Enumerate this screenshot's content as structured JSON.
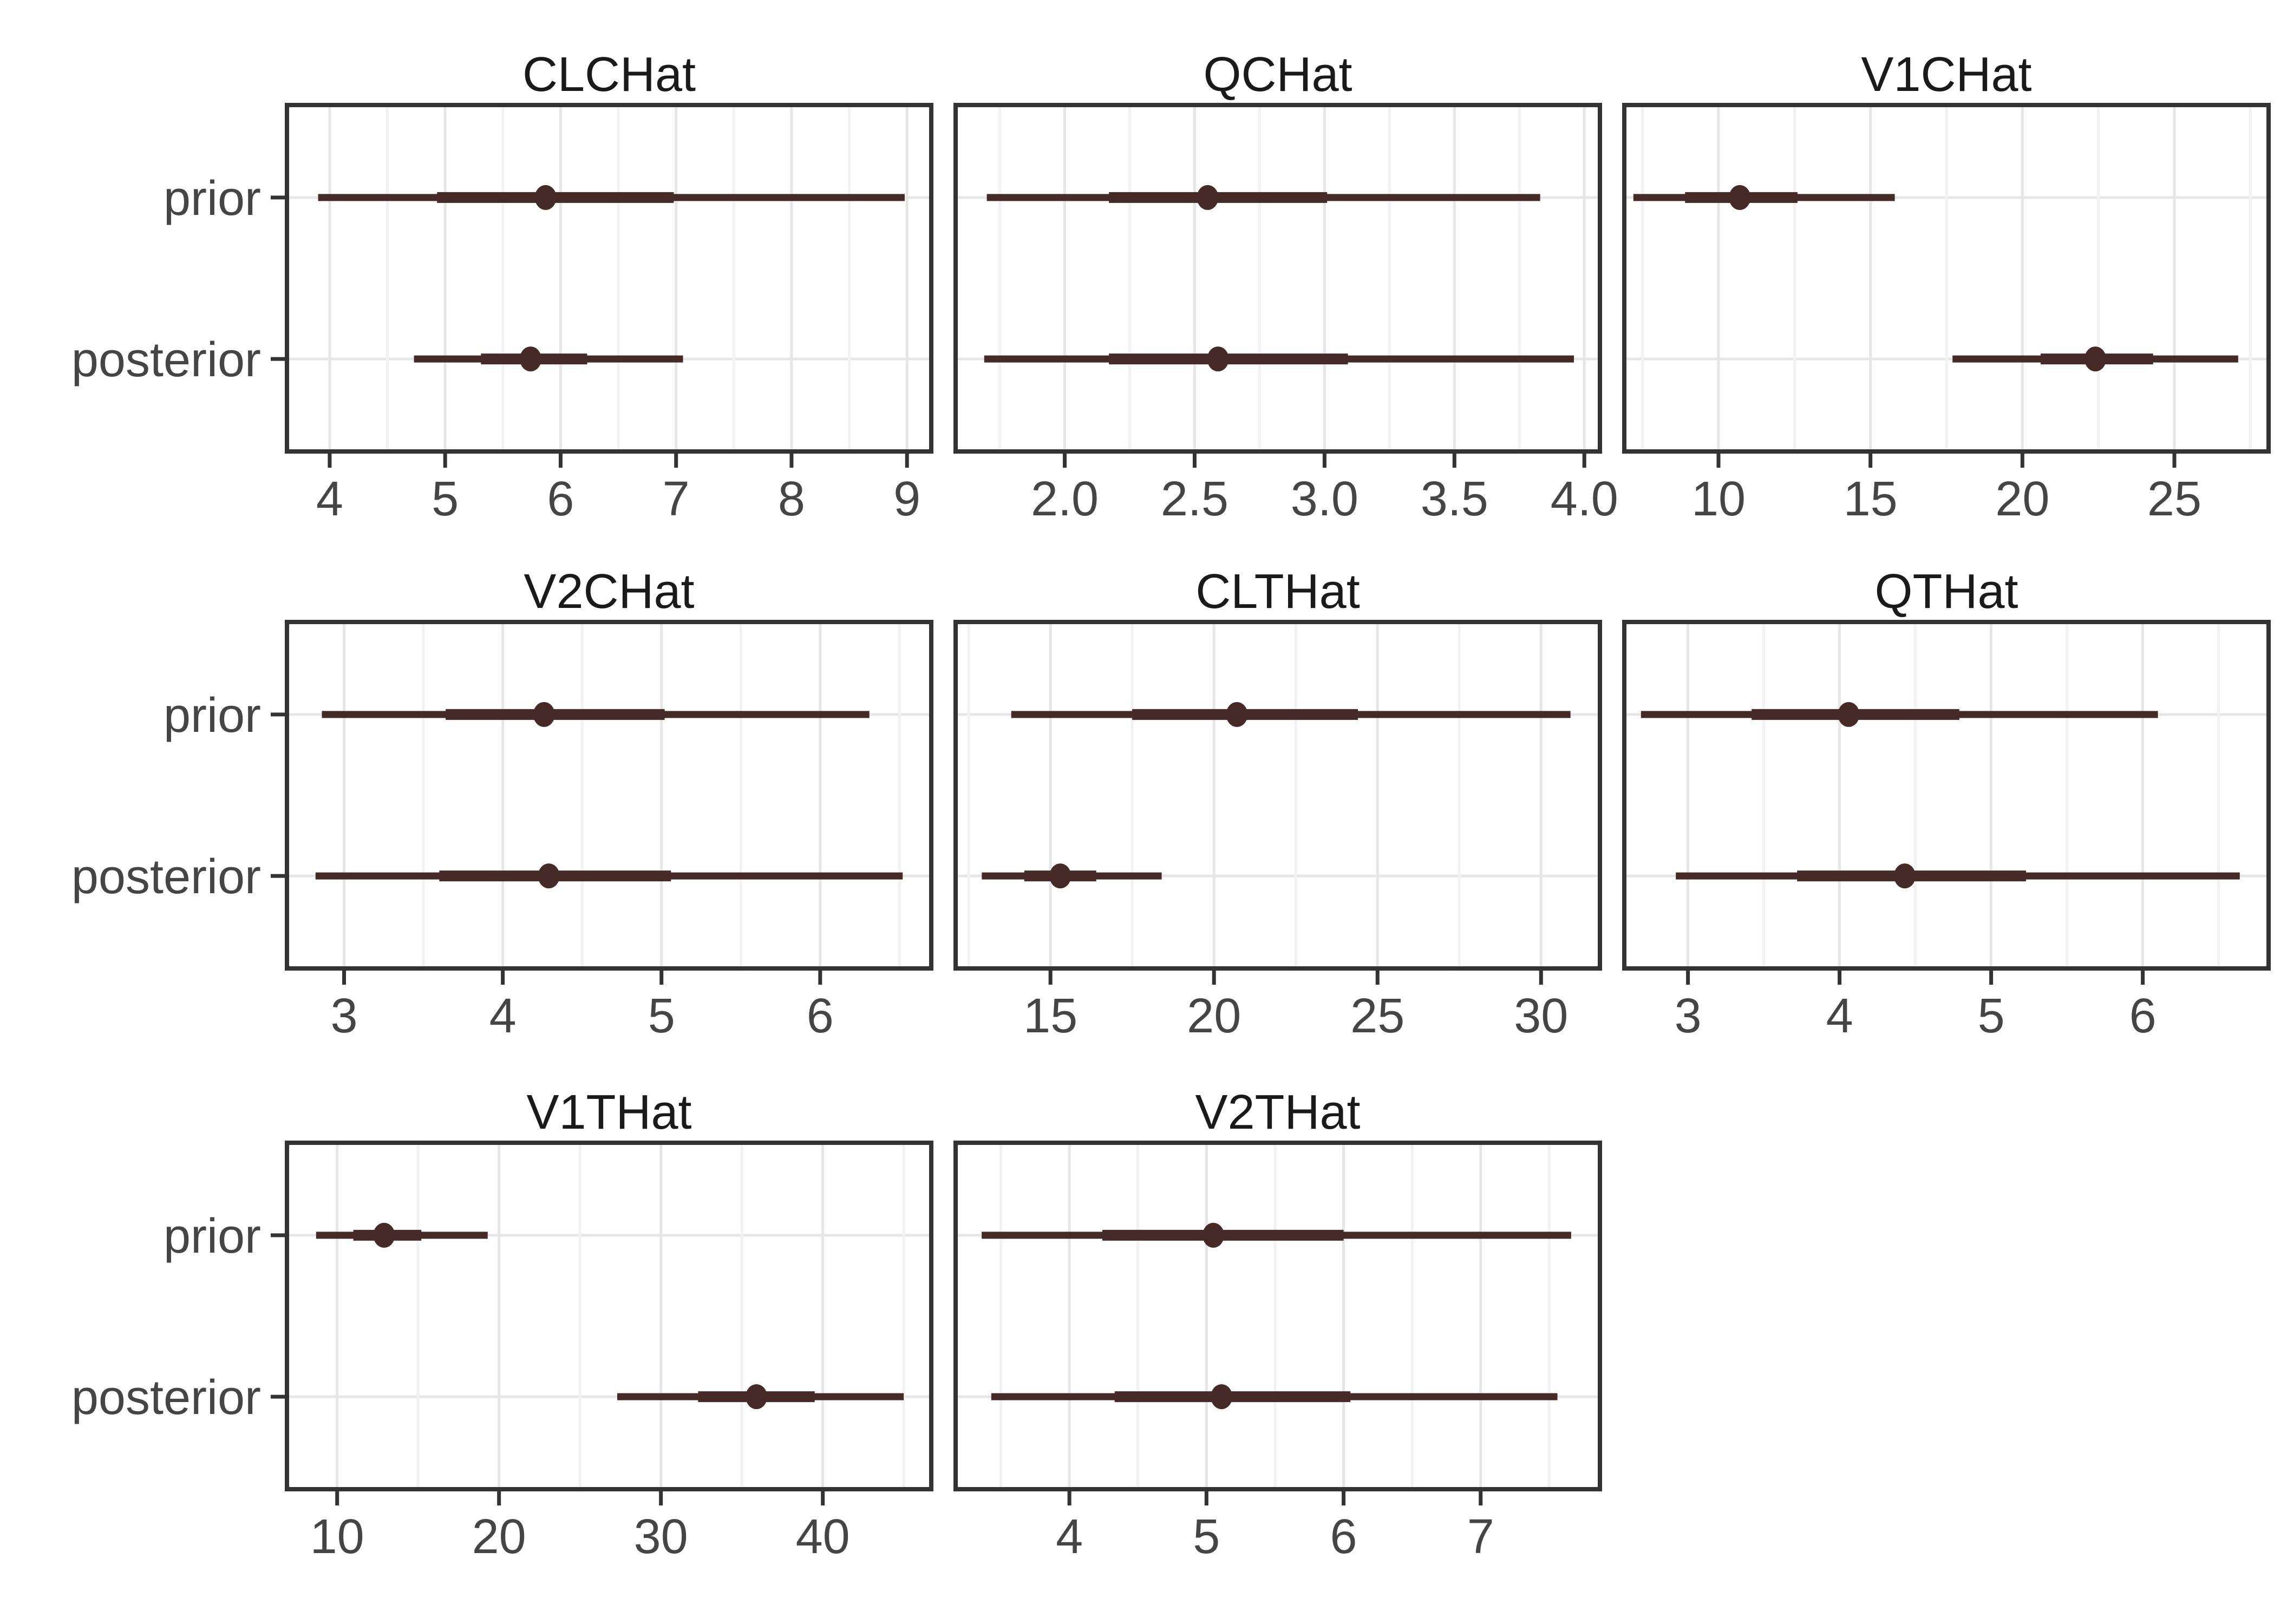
{
  "figure": {
    "background_color": "#ffffff",
    "interval_color": "#462A28",
    "grid_major_color": "#E6E6E6",
    "grid_minor_color": "#F2F2F2",
    "panel_border_color": "#333333",
    "axis_tick_color": "#333333",
    "axis_text_color": "#454545",
    "facet_title_color": "#1a1a1a",
    "row_labels": [
      "prior",
      "posterior"
    ]
  },
  "chart_data": {
    "type": "interval",
    "description": "Faceted horizontal point-interval plot comparing prior and posterior distributions for eight parameters; point = median, thick bar = 50% interval, thin line = outer interval. Free x scales per facet.",
    "rows": [
      "prior",
      "posterior"
    ],
    "legend": null,
    "grid": "on",
    "panels": [
      {
        "title": "CLCHat",
        "xlim": [
          3.63,
          9.21
        ],
        "ticks": [
          4,
          5,
          6,
          7,
          8,
          9
        ],
        "tick_labels": [
          "4",
          "5",
          "6",
          "7",
          "8",
          "9"
        ],
        "prior": {
          "lo": 3.9,
          "q1": 4.93,
          "mid": 5.87,
          "q3": 6.98,
          "hi": 8.98
        },
        "posterior": {
          "lo": 4.73,
          "q1": 5.31,
          "mid": 5.74,
          "q3": 6.23,
          "hi": 7.06
        }
      },
      {
        "title": "QCHat",
        "xlim": [
          1.58,
          4.06
        ],
        "ticks": [
          2.0,
          2.5,
          3.0,
          3.5,
          4.0
        ],
        "tick_labels": [
          "2.0",
          "2.5",
          "3.0",
          "3.5",
          "4.0"
        ],
        "prior": {
          "lo": 1.7,
          "q1": 2.17,
          "mid": 2.55,
          "q3": 3.01,
          "hi": 3.83
        },
        "posterior": {
          "lo": 1.69,
          "q1": 2.17,
          "mid": 2.59,
          "q3": 3.09,
          "hi": 3.96
        }
      },
      {
        "title": "V1CHat",
        "xlim": [
          6.9,
          28.1
        ],
        "ticks": [
          10,
          15,
          20,
          25
        ],
        "tick_labels": [
          "10",
          "15",
          "20",
          "25"
        ],
        "prior": {
          "lo": 7.2,
          "q1": 8.9,
          "mid": 10.7,
          "q3": 12.6,
          "hi": 15.8
        },
        "posterior": {
          "lo": 17.7,
          "q1": 20.6,
          "mid": 22.4,
          "q3": 24.3,
          "hi": 27.1
        }
      },
      {
        "title": "V2CHat",
        "xlim": [
          2.64,
          6.7
        ],
        "ticks": [
          3,
          4,
          5,
          6
        ],
        "tick_labels": [
          "3",
          "4",
          "5",
          "6"
        ],
        "prior": {
          "lo": 2.86,
          "q1": 3.64,
          "mid": 4.26,
          "q3": 5.02,
          "hi": 6.31
        },
        "posterior": {
          "lo": 2.82,
          "q1": 3.6,
          "mid": 4.29,
          "q3": 5.06,
          "hi": 6.52
        }
      },
      {
        "title": "CLTHat",
        "xlim": [
          12.1,
          31.8
        ],
        "ticks": [
          15,
          20,
          25,
          30
        ],
        "tick_labels": [
          "15",
          "20",
          "25",
          "30"
        ],
        "prior": {
          "lo": 13.8,
          "q1": 17.5,
          "mid": 20.7,
          "q3": 24.4,
          "hi": 30.9
        },
        "posterior": {
          "lo": 12.9,
          "q1": 14.2,
          "mid": 15.3,
          "q3": 16.4,
          "hi": 18.4
        }
      },
      {
        "title": "QTHat",
        "xlim": [
          2.58,
          6.83
        ],
        "ticks": [
          3,
          4,
          5,
          6
        ],
        "tick_labels": [
          "3",
          "4",
          "5",
          "6"
        ],
        "prior": {
          "lo": 2.69,
          "q1": 3.42,
          "mid": 4.06,
          "q3": 4.79,
          "hi": 6.1
        },
        "posterior": {
          "lo": 2.92,
          "q1": 3.72,
          "mid": 4.43,
          "q3": 5.23,
          "hi": 6.64
        }
      },
      {
        "title": "V1THat",
        "xlim": [
          6.9,
          46.7
        ],
        "ticks": [
          10,
          20,
          30,
          40
        ],
        "tick_labels": [
          "10",
          "20",
          "30",
          "40"
        ],
        "prior": {
          "lo": 8.7,
          "q1": 11.0,
          "mid": 12.9,
          "q3": 15.2,
          "hi": 19.3
        },
        "posterior": {
          "lo": 27.3,
          "q1": 32.3,
          "mid": 35.9,
          "q3": 39.5,
          "hi": 45.0
        }
      },
      {
        "title": "V2THat",
        "xlim": [
          3.17,
          7.87
        ],
        "ticks": [
          4,
          5,
          6,
          7
        ],
        "tick_labels": [
          "4",
          "5",
          "6",
          "7"
        ],
        "prior": {
          "lo": 3.36,
          "q1": 4.24,
          "mid": 5.05,
          "q3": 6.0,
          "hi": 7.66
        },
        "posterior": {
          "lo": 3.43,
          "q1": 4.33,
          "mid": 5.11,
          "q3": 6.05,
          "hi": 7.56
        }
      }
    ]
  }
}
